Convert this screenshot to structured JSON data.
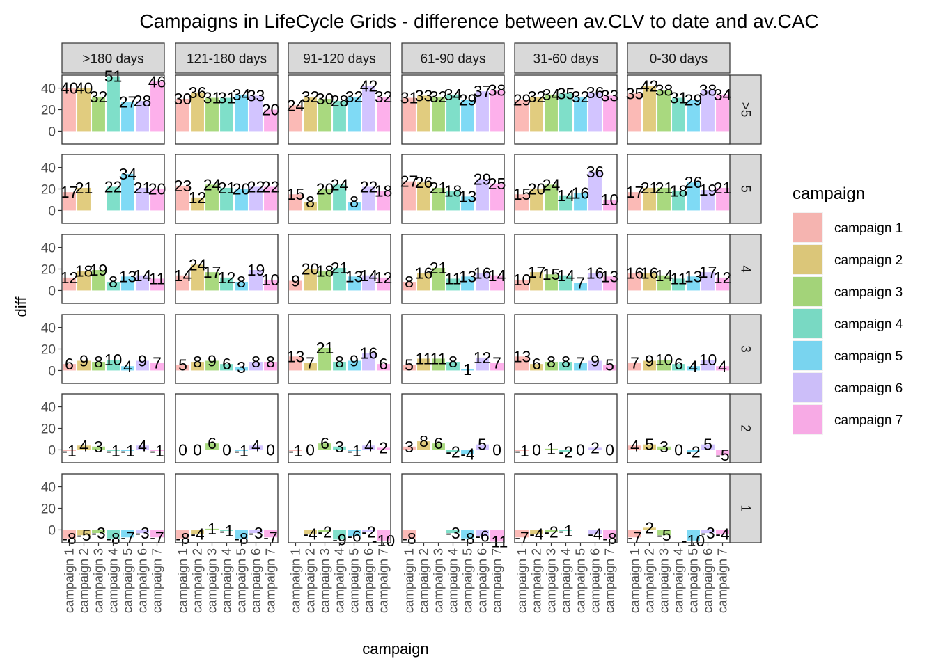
{
  "chart_data": {
    "type": "bar",
    "title": "Campaigns in LifeCycle Grids - difference between av.CLV to date and av.CAC",
    "xlabel": "campaign",
    "ylabel": "diff",
    "y_ticks": [
      0,
      20,
      40
    ],
    "ylim": [
      -12,
      52
    ],
    "grid": false,
    "categories": [
      "campaign 1",
      "campaign 2",
      "campaign 3",
      "campaign 4",
      "campaign 5",
      "campaign 6",
      "campaign 7"
    ],
    "column_facets": [
      ">180 days",
      "121-180 days",
      "91-120 days",
      "61-90 days",
      "31-60 days",
      "0-30 days"
    ],
    "row_facets": [
      ">5",
      "5",
      "4",
      "3",
      "2",
      "1"
    ],
    "values": [
      [
        [
          40,
          40,
          32,
          51,
          27,
          28,
          46
        ],
        [
          30,
          36,
          31,
          31,
          34,
          33,
          20
        ],
        [
          24,
          32,
          30,
          28,
          32,
          42,
          32
        ],
        [
          31,
          33,
          32,
          34,
          29,
          37,
          38
        ],
        [
          29,
          32,
          34,
          35,
          32,
          36,
          33
        ],
        [
          35,
          42,
          38,
          31,
          29,
          38,
          34
        ]
      ],
      [
        [
          17,
          21,
          null,
          22,
          34,
          21,
          20
        ],
        [
          23,
          12,
          24,
          21,
          20,
          22,
          22
        ],
        [
          15,
          8,
          20,
          24,
          8,
          22,
          18
        ],
        [
          27,
          26,
          21,
          18,
          13,
          29,
          25
        ],
        [
          15,
          20,
          24,
          14,
          16,
          36,
          10
        ],
        [
          17,
          21,
          21,
          18,
          26,
          19,
          21
        ]
      ],
      [
        [
          12,
          18,
          19,
          8,
          13,
          14,
          11
        ],
        [
          14,
          24,
          17,
          12,
          8,
          19,
          10
        ],
        [
          9,
          20,
          18,
          21,
          13,
          14,
          12
        ],
        [
          8,
          16,
          21,
          11,
          13,
          16,
          14
        ],
        [
          10,
          17,
          15,
          14,
          7,
          16,
          13
        ],
        [
          16,
          16,
          14,
          11,
          13,
          17,
          12
        ]
      ],
      [
        [
          6,
          9,
          8,
          10,
          4,
          9,
          7
        ],
        [
          5,
          8,
          9,
          6,
          3,
          8,
          8
        ],
        [
          13,
          7,
          21,
          8,
          9,
          16,
          6
        ],
        [
          5,
          11,
          11,
          8,
          1,
          12,
          7
        ],
        [
          13,
          6,
          8,
          8,
          7,
          9,
          5
        ],
        [
          7,
          9,
          10,
          6,
          4,
          10,
          4
        ]
      ],
      [
        [
          -1,
          4,
          3,
          -1,
          -1,
          4,
          -1
        ],
        [
          0,
          0,
          6,
          0,
          -1,
          4,
          0
        ],
        [
          -1,
          0,
          6,
          3,
          -1,
          4,
          2
        ],
        [
          3,
          8,
          6,
          -2,
          -4,
          5,
          0
        ],
        [
          -1,
          0,
          1,
          -2,
          0,
          2,
          0
        ],
        [
          4,
          5,
          3,
          0,
          -2,
          5,
          -5
        ]
      ],
      [
        [
          -8,
          -5,
          -3,
          -8,
          -7,
          -3,
          -7
        ],
        [
          -8,
          -4,
          1,
          -1,
          -8,
          -3,
          -7
        ],
        [
          null,
          -4,
          -2,
          -9,
          -6,
          -2,
          -10
        ],
        [
          -8,
          null,
          null,
          -3,
          -8,
          -6,
          -11
        ],
        [
          -7,
          -4,
          -2,
          -1,
          null,
          -4,
          -8
        ],
        [
          -7,
          2,
          -5,
          null,
          -10,
          -3,
          -4
        ]
      ]
    ],
    "legend": {
      "title": "campaign",
      "position": "right",
      "entries": [
        "campaign 1",
        "campaign 2",
        "campaign 3",
        "campaign 4",
        "campaign 5",
        "campaign 6",
        "campaign 7"
      ]
    },
    "colors": [
      "#F8766D",
      "#C49A00",
      "#53B400",
      "#00C094",
      "#00B6EB",
      "#A58AFF",
      "#FB61D7"
    ],
    "strip_fill": "#D9D9D9"
  }
}
